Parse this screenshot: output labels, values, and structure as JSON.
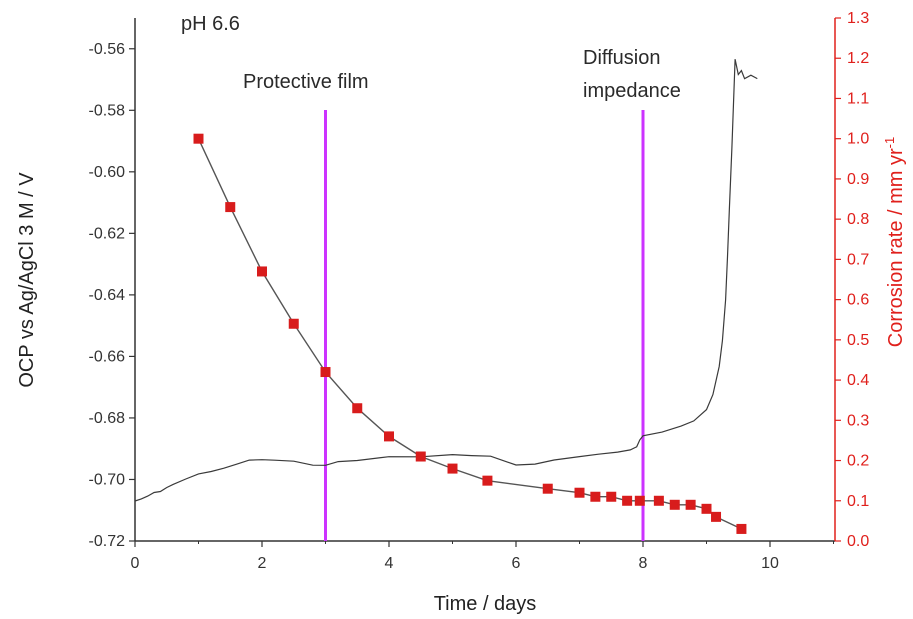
{
  "chart_data": {
    "type": "line",
    "title": "pH 6.6",
    "xlabel": "Time / days",
    "ylabel_left": "OCP vs Ag/AgCl 3 M / V",
    "ylabel_right_main": "Corrosion rate / mm yr",
    "ylabel_right_sup": "-1",
    "xlim": [
      0,
      11
    ],
    "ylim_left": [
      -0.72,
      -0.55
    ],
    "ylim_right": [
      0.0,
      1.3
    ],
    "x_ticks": [
      "0",
      "2",
      "4",
      "6",
      "8",
      "10"
    ],
    "y_left_ticks": [
      "-0.56",
      "-0.58",
      "-0.60",
      "-0.62",
      "-0.64",
      "-0.66",
      "-0.68",
      "-0.70",
      "-0.72"
    ],
    "y_right_ticks": [
      "0.0",
      "0.1",
      "0.2",
      "0.3",
      "0.4",
      "0.5",
      "0.6",
      "0.7",
      "0.8",
      "0.9",
      "1.0",
      "1.1",
      "1.2",
      "1.3"
    ],
    "annotations": [
      {
        "text": "Protective film",
        "x": 3.0
      },
      {
        "text": "Diffusion",
        "x": 8.0
      },
      {
        "text": "impedance",
        "x": 8.0
      }
    ],
    "vlines": [
      3.0,
      8.0
    ],
    "colors": {
      "ocp": "#3a3a3a",
      "corrosion": "#d81c1c",
      "vline": "#cc33ff",
      "right_axis": "#e0201c",
      "axis": "#333333"
    },
    "series": [
      {
        "name": "OCP",
        "axis": "left",
        "x": [
          0.0,
          0.1,
          0.2,
          0.3,
          0.4,
          0.5,
          0.6,
          0.8,
          1.0,
          1.2,
          1.4,
          1.6,
          1.8,
          2.0,
          2.2,
          2.5,
          2.8,
          3.0,
          3.2,
          3.5,
          4.0,
          4.5,
          5.0,
          5.3,
          5.6,
          6.0,
          6.3,
          6.6,
          7.0,
          7.3,
          7.6,
          7.8,
          7.9,
          7.95,
          8.0,
          8.3,
          8.6,
          8.8,
          9.0,
          9.1,
          9.2,
          9.25,
          9.3,
          9.33,
          9.36,
          9.4,
          9.45,
          9.5,
          9.55,
          9.6,
          9.7,
          9.8
        ],
        "values": [
          -0.707,
          -0.706,
          -0.705,
          -0.704,
          -0.704,
          -0.703,
          -0.702,
          -0.7,
          -0.698,
          -0.697,
          -0.696,
          -0.695,
          -0.694,
          -0.694,
          -0.694,
          -0.694,
          -0.695,
          -0.695,
          -0.694,
          -0.694,
          -0.693,
          -0.693,
          -0.692,
          -0.692,
          -0.692,
          -0.695,
          -0.695,
          -0.694,
          -0.693,
          -0.692,
          -0.691,
          -0.69,
          -0.689,
          -0.687,
          -0.686,
          -0.685,
          -0.683,
          -0.681,
          -0.677,
          -0.672,
          -0.663,
          -0.655,
          -0.642,
          -0.628,
          -0.612,
          -0.592,
          -0.563,
          -0.568,
          -0.567,
          -0.57,
          -0.569,
          -0.57
        ]
      },
      {
        "name": "Corrosion rate",
        "axis": "right",
        "x": [
          1.0,
          1.5,
          2.0,
          2.5,
          3.0,
          3.5,
          4.0,
          4.5,
          5.0,
          5.55,
          6.5,
          7.0,
          7.25,
          7.5,
          7.75,
          7.95,
          8.25,
          8.5,
          8.75,
          9.0,
          9.15,
          9.55
        ],
        "values": [
          1.0,
          0.83,
          0.67,
          0.54,
          0.42,
          0.33,
          0.26,
          0.21,
          0.18,
          0.15,
          0.13,
          0.12,
          0.11,
          0.11,
          0.1,
          0.1,
          0.1,
          0.09,
          0.09,
          0.08,
          0.06,
          0.03
        ]
      }
    ]
  }
}
